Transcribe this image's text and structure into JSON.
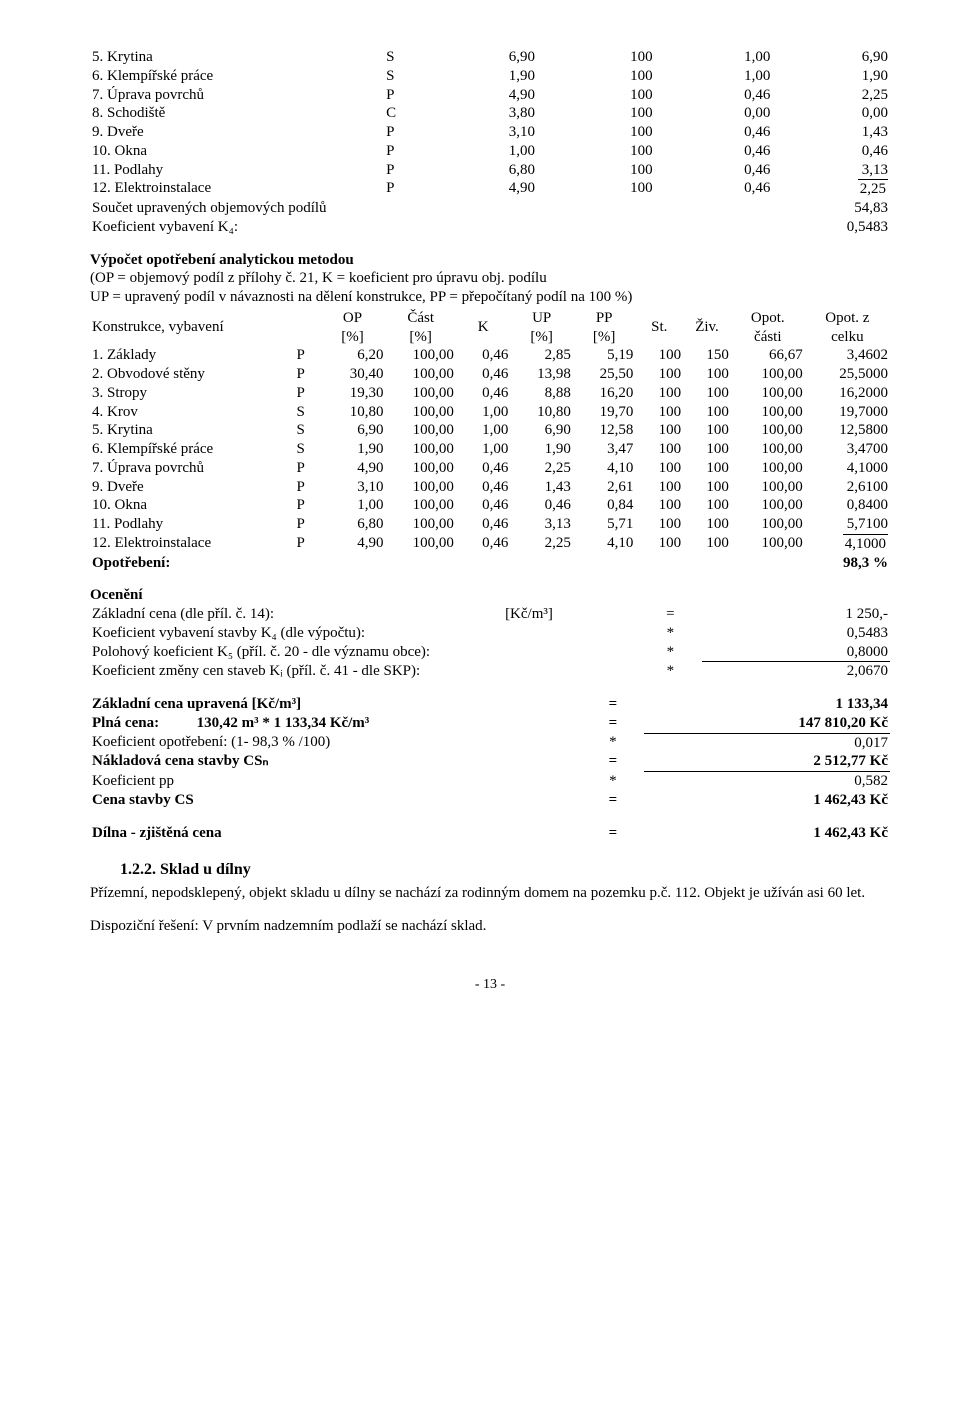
{
  "table1": {
    "rows": [
      {
        "name": "5. Krytina",
        "t": "S",
        "op": "6,90",
        "cast": "100",
        "k": "1,00",
        "up": "6,90"
      },
      {
        "name": "6. Klempířské práce",
        "t": "S",
        "op": "1,90",
        "cast": "100",
        "k": "1,00",
        "up": "1,90"
      },
      {
        "name": "7. Úprava povrchů",
        "t": "P",
        "op": "4,90",
        "cast": "100",
        "k": "0,46",
        "up": "2,25"
      },
      {
        "name": "8. Schodiště",
        "t": "C",
        "op": "3,80",
        "cast": "100",
        "k": "0,00",
        "up": "0,00"
      },
      {
        "name": "9. Dveře",
        "t": "P",
        "op": "3,10",
        "cast": "100",
        "k": "0,46",
        "up": "1,43"
      },
      {
        "name": "10. Okna",
        "t": "P",
        "op": "1,00",
        "cast": "100",
        "k": "0,46",
        "up": "0,46"
      },
      {
        "name": "11. Podlahy",
        "t": "P",
        "op": "6,80",
        "cast": "100",
        "k": "0,46",
        "up": "3,13"
      },
      {
        "name": "12. Elektroinstalace",
        "t": "P",
        "op": "4,90",
        "cast": "100",
        "k": "0,46",
        "up": "2,25"
      }
    ],
    "sum_label": "Součet upravených objemových podílů",
    "sum_value": "54,83",
    "k4_label": "Koeficient vybavení K₄:",
    "k4_value": "0,5483"
  },
  "analytic": {
    "title": "Výpočet opotřebení analytickou metodou",
    "line1": "(OP = objemový podíl z přílohy č. 21, K = koeficient pro úpravu obj. podílu",
    "line2": "UP = upravený podíl v návaznosti na dělení konstrukce, PP = přepočítaný podíl na 100 %)",
    "header_left": "Konstrukce, vybavení",
    "h_op1": "OP",
    "h_op2": "[%]",
    "h_cast1": "Část",
    "h_cast2": "[%]",
    "h_k": "K",
    "h_up1": "UP",
    "h_up2": "[%]",
    "h_pp1": "PP",
    "h_pp2": "[%]",
    "h_st": "St.",
    "h_ziv": "Živ.",
    "h_opot1": "Opot.",
    "h_opot2": "části",
    "h_opotz1": "Opot. z",
    "h_opotz2": "celku",
    "rows": [
      {
        "name": "1. Základy",
        "t": "P",
        "op": "6,20",
        "cast": "100,00",
        "k": "0,46",
        "up": "2,85",
        "pp": "5,19",
        "st": "100",
        "ziv": "150",
        "oc": "66,67",
        "oz": "3,4602"
      },
      {
        "name": "2. Obvodové stěny",
        "t": "P",
        "op": "30,40",
        "cast": "100,00",
        "k": "0,46",
        "up": "13,98",
        "pp": "25,50",
        "st": "100",
        "ziv": "100",
        "oc": "100,00",
        "oz": "25,5000"
      },
      {
        "name": "3. Stropy",
        "t": "P",
        "op": "19,30",
        "cast": "100,00",
        "k": "0,46",
        "up": "8,88",
        "pp": "16,20",
        "st": "100",
        "ziv": "100",
        "oc": "100,00",
        "oz": "16,2000"
      },
      {
        "name": "4. Krov",
        "t": "S",
        "op": "10,80",
        "cast": "100,00",
        "k": "1,00",
        "up": "10,80",
        "pp": "19,70",
        "st": "100",
        "ziv": "100",
        "oc": "100,00",
        "oz": "19,7000"
      },
      {
        "name": "5. Krytina",
        "t": "S",
        "op": "6,90",
        "cast": "100,00",
        "k": "1,00",
        "up": "6,90",
        "pp": "12,58",
        "st": "100",
        "ziv": "100",
        "oc": "100,00",
        "oz": "12,5800"
      },
      {
        "name": "6. Klempířské práce",
        "t": "S",
        "op": "1,90",
        "cast": "100,00",
        "k": "1,00",
        "up": "1,90",
        "pp": "3,47",
        "st": "100",
        "ziv": "100",
        "oc": "100,00",
        "oz": "3,4700"
      },
      {
        "name": "7. Úprava povrchů",
        "t": "P",
        "op": "4,90",
        "cast": "100,00",
        "k": "0,46",
        "up": "2,25",
        "pp": "4,10",
        "st": "100",
        "ziv": "100",
        "oc": "100,00",
        "oz": "4,1000"
      },
      {
        "name": "9. Dveře",
        "t": "P",
        "op": "3,10",
        "cast": "100,00",
        "k": "0,46",
        "up": "1,43",
        "pp": "2,61",
        "st": "100",
        "ziv": "100",
        "oc": "100,00",
        "oz": "2,6100"
      },
      {
        "name": "10. Okna",
        "t": "P",
        "op": "1,00",
        "cast": "100,00",
        "k": "0,46",
        "up": "0,46",
        "pp": "0,84",
        "st": "100",
        "ziv": "100",
        "oc": "100,00",
        "oz": "0,8400"
      },
      {
        "name": "11. Podlahy",
        "t": "P",
        "op": "6,80",
        "cast": "100,00",
        "k": "0,46",
        "up": "3,13",
        "pp": "5,71",
        "st": "100",
        "ziv": "100",
        "oc": "100,00",
        "oz": "5,7100"
      },
      {
        "name": "12. Elektroinstalace",
        "t": "P",
        "op": "4,90",
        "cast": "100,00",
        "k": "0,46",
        "up": "2,25",
        "pp": "4,10",
        "st": "100",
        "ziv": "100",
        "oc": "100,00",
        "oz": "4,1000"
      }
    ],
    "total_label": "Opotřebení:",
    "total_value": "98,3 %"
  },
  "ocen": {
    "title": "Ocenění",
    "rows": [
      {
        "l": "Základní cena (dle příl. č. 14):",
        "m": "[Kč/m³]",
        "op": "=",
        "v": "1 250,-",
        "ul": false
      },
      {
        "l": "Koeficient vybavení stavby K₄ (dle výpočtu):",
        "m": "",
        "op": "*",
        "v": "0,5483",
        "ul": false
      },
      {
        "l": "Polohový koeficient K₅ (příl. č. 20 - dle významu obce):",
        "m": "",
        "op": "*",
        "v": "0,8000",
        "ul": false
      },
      {
        "l": "Koeficient změny cen staveb Kᵢ (příl. č. 41 - dle SKP):",
        "m": "",
        "op": "*",
        "v": "2,0670",
        "ul": true
      }
    ]
  },
  "summary": {
    "rows": [
      {
        "l": "Základní cena upravená [Kč/m³]",
        "op": "=",
        "v": "1 133,34",
        "bold": true,
        "ul": false
      },
      {
        "l": "Plná cena:          130,42 m³ * 1 133,34 Kč/m³",
        "op": "=",
        "v": "147 810,20 Kč",
        "bold": true,
        "ul": false
      },
      {
        "l": "Koeficient opotřebení: (1- 98,3 % /100)",
        "op": "*",
        "v": "0,017",
        "bold": false,
        "ul": true
      },
      {
        "l": "Nákladová cena stavby CSₙ",
        "op": "=",
        "v": "2 512,77 Kč",
        "bold": true,
        "ul": false
      },
      {
        "l": "Koeficient pp",
        "op": "*",
        "v": "0,582",
        "bold": false,
        "ul": true
      },
      {
        "l": "Cena stavby CS",
        "op": "=",
        "v": "1 462,43 Kč",
        "bold": true,
        "ul": false
      }
    ],
    "final_l": "Dílna - zjištěná cena",
    "final_op": "=",
    "final_v": "1 462,43 Kč"
  },
  "subsection": {
    "heading": "1.2.2. Sklad u dílny",
    "p1": "Přízemní, nepodsklepený, objekt skladu u dílny se nachází za rodinným domem na pozemku p.č. 112. Objekt je užíván asi 60 let.",
    "p2": "Dispoziční řešení: V prvním nadzemním podlaží se nachází sklad."
  },
  "page": "- 13 -"
}
